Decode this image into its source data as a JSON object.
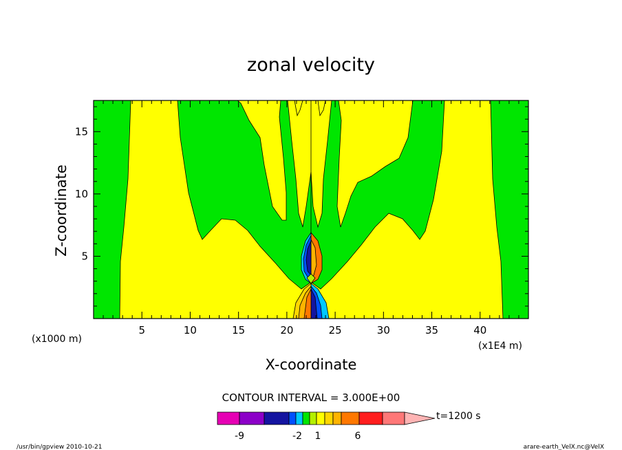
{
  "chart_data": {
    "type": "heatmap",
    "title": "zonal velocity",
    "xlabel": "X-coordinate",
    "ylabel": "Z-coordinate",
    "x_unit": "(x1E4 m)",
    "y_unit": "(x1000 m)",
    "xlim": [
      0,
      45
    ],
    "ylim": [
      0,
      17.5
    ],
    "x_ticks": [
      "5",
      "10",
      "15",
      "20",
      "25",
      "30",
      "35",
      "40"
    ],
    "y_ticks": [
      "5",
      "10",
      "15"
    ],
    "contour_interval": "CONTOUR INTERVAL = 3.000E+00",
    "colorbar": {
      "labels": [
        {
          "text": "-9",
          "at": -9
        },
        {
          "text": "-2",
          "at": -2
        },
        {
          "text": "1",
          "at": 1
        },
        {
          "text": "6",
          "at": 6
        }
      ],
      "time_label": "t=1200 s",
      "colors": {
        "magenta": "#e600b4",
        "purple": "#8c00c8",
        "darkblue": "#1414a0",
        "blue": "#0050ff",
        "cyan": "#00c8ff",
        "green": "#00e600",
        "yellowgreen": "#b4f000",
        "yellow": "#ffff00",
        "gold": "#ffd700",
        "orange1": "#ffb400",
        "orange2": "#ff7800",
        "red": "#ff1e1e",
        "pink": "#ff7878",
        "lightpink": "#ffb4b4"
      }
    }
  },
  "footer": {
    "left": "/usr/bin/gpview   2010-10-21",
    "right": "arare-earth_VelX.nc@VelX"
  }
}
